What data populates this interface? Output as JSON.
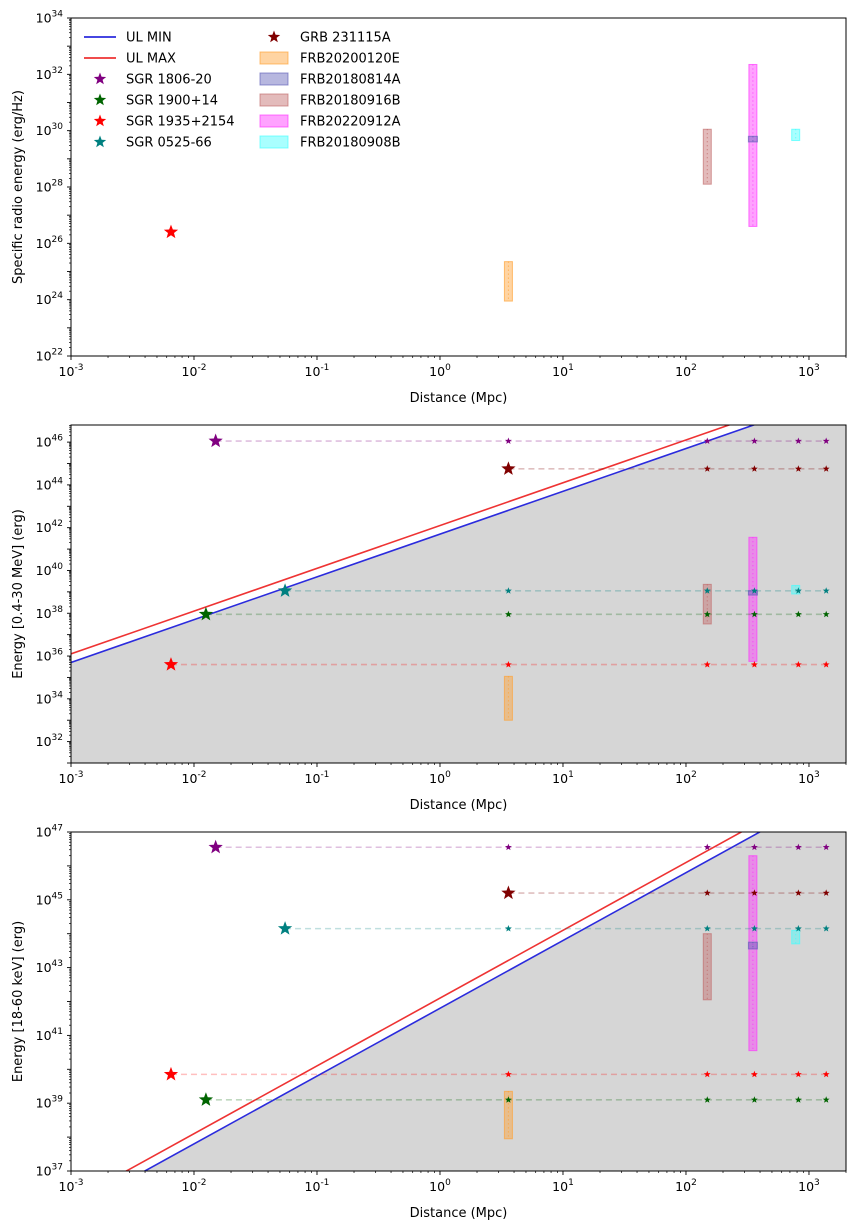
{
  "chart_data": {
    "type": "scatter",
    "x_scale": "log",
    "y_scale": "log",
    "xlabel": "Distance (Mpc)",
    "xlim": [
      0.001,
      2000
    ],
    "x_tick_exponents": [
      -3,
      -2,
      -1,
      0,
      1,
      2,
      3
    ],
    "distance_grid_mpc": [
      3.6,
      149,
      360,
      820,
      1380
    ],
    "colors": {
      "ul_min": "#2b2bdd",
      "ul_max": "#ee3333",
      "shade": "#d6d6d6",
      "sgr_1806_20": "#800080",
      "sgr_1900_14": "#006400",
      "sgr_1935_2154": "#ff0000",
      "sgr_0525_66": "#008080",
      "grb_231115a": "#800000",
      "frb20200120e": "#ffa030",
      "frb20180814a": "#6060b8",
      "frb20180916b": "#c06868",
      "frb20220912a": "#ff30ff",
      "frb20180908b": "#40ffff"
    },
    "legend": {
      "placement": "top-left",
      "col1": [
        {
          "label": "UL MIN",
          "kind": "line",
          "color_key": "ul_min"
        },
        {
          "label": "UL MAX",
          "kind": "line",
          "color_key": "ul_max"
        },
        {
          "label": "SGR 1806-20",
          "kind": "star",
          "color_key": "sgr_1806_20"
        },
        {
          "label": "SGR 1900+14",
          "kind": "star",
          "color_key": "sgr_1900_14"
        },
        {
          "label": "SGR 1935+2154",
          "kind": "star",
          "color_key": "sgr_1935_2154"
        },
        {
          "label": "SGR 0525-66",
          "kind": "star",
          "color_key": "sgr_0525_66"
        }
      ],
      "col2": [
        {
          "label": "GRB 231115A",
          "kind": "star",
          "color_key": "grb_231115a"
        },
        {
          "label": "FRB20200120E",
          "kind": "box",
          "color_key": "frb20200120e"
        },
        {
          "label": "FRB20180814A",
          "kind": "box",
          "color_key": "frb20180814a"
        },
        {
          "label": "FRB20180916B",
          "kind": "box",
          "color_key": "frb20180916b"
        },
        {
          "label": "FRB20220912A",
          "kind": "box",
          "color_key": "frb20220912a"
        },
        {
          "label": "FRB20180908B",
          "kind": "box",
          "color_key": "frb20180908b"
        }
      ]
    },
    "panels": [
      {
        "name": "radio",
        "ylabel": "Specific radio energy (erg/Hz)",
        "ylim_exp": [
          22,
          34
        ],
        "y_tick_exponents": [
          22,
          24,
          26,
          28,
          30,
          32,
          34
        ],
        "stars": [
          {
            "source": "SGR 1935+2154",
            "color_key": "sgr_1935_2154",
            "x": 0.0065,
            "y_exp": 26.4
          }
        ],
        "frb_boxes": [
          {
            "source": "FRB20200120E",
            "color_key": "frb20200120e",
            "x": 3.6,
            "y_low_exp": 23.95,
            "y_high_exp": 25.35
          },
          {
            "source": "FRB20180916B",
            "color_key": "frb20180916b",
            "x": 149,
            "y_low_exp": 28.1,
            "y_high_exp": 30.05
          },
          {
            "source": "FRB20220912A",
            "color_key": "frb20220912a",
            "x": 350,
            "y_low_exp": 26.6,
            "y_high_exp": 32.35
          },
          {
            "source": "FRB20180908B",
            "color_key": "frb20180908b",
            "x": 780,
            "y_low_exp": 29.65,
            "y_high_exp": 30.05
          },
          {
            "source": "FRB20180814A",
            "color_key": "frb20180814a",
            "x": 350,
            "y_low_exp": 29.6,
            "y_high_exp": 29.8
          }
        ]
      },
      {
        "name": "energy_0.4_30_MeV",
        "ylabel": "Energy [0.4-30 MeV] (erg)",
        "ylim_exp": [
          31,
          46.8
        ],
        "y_tick_exponents": [
          32,
          34,
          36,
          38,
          40,
          42,
          44,
          46
        ],
        "ul_min": {
          "slope": 2,
          "y_exp_at_1mpc": 41.7
        },
        "ul_max": {
          "slope": 2,
          "y_exp_at_1mpc": 42.1
        },
        "stars": [
          {
            "source": "SGR 1806-20",
            "color_key": "sgr_1806_20",
            "x": 0.015,
            "y_exp": 46.05
          },
          {
            "source": "SGR 1900+14",
            "color_key": "sgr_1900_14",
            "x": 0.0125,
            "y_exp": 37.95
          },
          {
            "source": "SGR 1935+2154",
            "color_key": "sgr_1935_2154",
            "x": 0.0065,
            "y_exp": 35.6
          },
          {
            "source": "SGR 0525-66",
            "color_key": "sgr_0525_66",
            "x": 0.055,
            "y_exp": 39.05
          },
          {
            "source": "GRB 231115A",
            "color_key": "grb_231115a",
            "x": 3.6,
            "y_exp": 44.75
          }
        ],
        "frb_boxes": [
          {
            "source": "FRB20200120E",
            "color_key": "frb20200120e",
            "x": 3.6,
            "y_low_exp": 33.0,
            "y_high_exp": 35.05
          },
          {
            "source": "FRB20180916B",
            "color_key": "frb20180916b",
            "x": 149,
            "y_low_exp": 37.5,
            "y_high_exp": 39.35
          },
          {
            "source": "FRB20220912A",
            "color_key": "frb20220912a",
            "x": 350,
            "y_low_exp": 35.75,
            "y_high_exp": 41.55
          },
          {
            "source": "FRB20180908B",
            "color_key": "frb20180908b",
            "x": 780,
            "y_low_exp": 38.9,
            "y_high_exp": 39.3
          },
          {
            "source": "FRB20180814A",
            "color_key": "frb20180814a",
            "x": 350,
            "y_low_exp": 38.85,
            "y_high_exp": 39.05
          }
        ]
      },
      {
        "name": "energy_18_60_keV",
        "ylabel": "Energy [18-60 keV] (erg)",
        "ylim_exp": [
          37,
          47
        ],
        "y_tick_exponents": [
          37,
          39,
          41,
          43,
          45,
          47
        ],
        "ul_min": {
          "slope": 2,
          "y_exp_at_1mpc": 41.8
        },
        "ul_max": {
          "slope": 2,
          "y_exp_at_1mpc": 42.1
        },
        "stars": [
          {
            "source": "SGR 1806-20",
            "color_key": "sgr_1806_20",
            "x": 0.015,
            "y_exp": 46.55
          },
          {
            "source": "SGR 1900+14",
            "color_key": "sgr_1900_14",
            "x": 0.0125,
            "y_exp": 39.1
          },
          {
            "source": "SGR 1935+2154",
            "color_key": "sgr_1935_2154",
            "x": 0.0065,
            "y_exp": 39.85
          },
          {
            "source": "SGR 0525-66",
            "color_key": "sgr_0525_66",
            "x": 0.055,
            "y_exp": 44.15
          },
          {
            "source": "GRB 231115A",
            "color_key": "grb_231115a",
            "x": 3.6,
            "y_exp": 45.2
          }
        ],
        "frb_boxes": [
          {
            "source": "FRB20200120E",
            "color_key": "frb20200120e",
            "x": 3.6,
            "y_low_exp": 37.95,
            "y_high_exp": 39.35
          },
          {
            "source": "FRB20180916B",
            "color_key": "frb20180916b",
            "x": 149,
            "y_low_exp": 42.05,
            "y_high_exp": 44.0
          },
          {
            "source": "FRB20220912A",
            "color_key": "frb20220912a",
            "x": 350,
            "y_low_exp": 40.55,
            "y_high_exp": 46.3
          },
          {
            "source": "FRB20180908B",
            "color_key": "frb20180908b",
            "x": 780,
            "y_low_exp": 43.7,
            "y_high_exp": 44.1
          },
          {
            "source": "FRB20180814A",
            "color_key": "frb20180814a",
            "x": 350,
            "y_low_exp": 43.55,
            "y_high_exp": 43.75
          }
        ]
      }
    ]
  }
}
